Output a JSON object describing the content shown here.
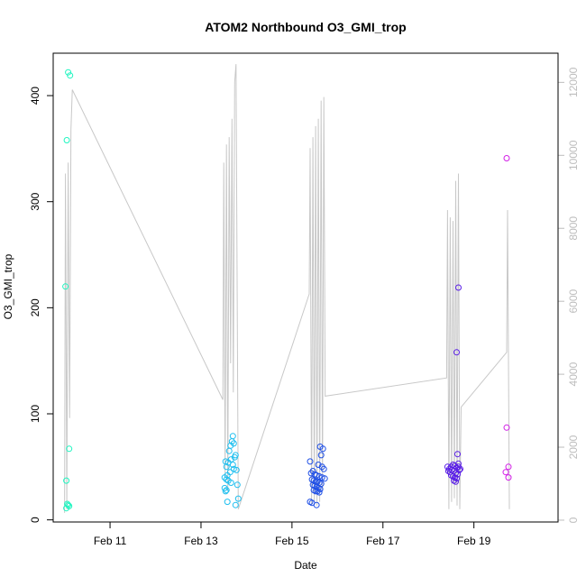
{
  "chart_data": {
    "type": "scatter",
    "title": "ATOM2 Northbound O3_GMI_trop",
    "xlabel": "Date",
    "ylabel": "O3_GMI_trop",
    "x_unit": "days (Feb)",
    "xlim": [
      9.75,
      20.85
    ],
    "ylim": [
      -2,
      440
    ],
    "y2lim": [
      -50,
      12800
    ],
    "x_ticks": [
      {
        "value": 11,
        "label": "Feb 11"
      },
      {
        "value": 13,
        "label": "Feb 13"
      },
      {
        "value": 15,
        "label": "Feb 15"
      },
      {
        "value": 17,
        "label": "Feb 17"
      },
      {
        "value": 19,
        "label": "Feb 19"
      }
    ],
    "y_ticks": [
      "0",
      "100",
      "200",
      "300",
      "400"
    ],
    "y2_ticks": [
      "0",
      "2000",
      "4000",
      "6000",
      "8000",
      "10000",
      "12000"
    ],
    "grid": false,
    "colors": {
      "altitude_line": "#c8c8c8",
      "right_axis": "#bdbdbd",
      "axis": "#000000"
    },
    "series": [
      {
        "color": "#1ff5c0",
        "points": [
          [
            10.08,
            422
          ],
          [
            10.12,
            419
          ],
          [
            10.05,
            358
          ],
          [
            10.02,
            220
          ],
          [
            10.1,
            67
          ],
          [
            10.04,
            37
          ],
          [
            10.06,
            15
          ],
          [
            10.08,
            14
          ],
          [
            10.1,
            13
          ],
          [
            10.04,
            11
          ]
        ]
      },
      {
        "color": "#1fbfef",
        "points": [
          [
            13.7,
            79
          ],
          [
            13.68,
            74
          ],
          [
            13.72,
            72
          ],
          [
            13.65,
            70
          ],
          [
            13.62,
            65
          ],
          [
            13.76,
            61
          ],
          [
            13.74,
            59
          ],
          [
            13.66,
            57
          ],
          [
            13.54,
            55
          ],
          [
            13.6,
            54
          ],
          [
            13.7,
            52
          ],
          [
            13.56,
            50
          ],
          [
            13.72,
            48
          ],
          [
            13.78,
            47
          ],
          [
            13.64,
            45
          ],
          [
            13.58,
            42
          ],
          [
            13.52,
            40
          ],
          [
            13.56,
            38
          ],
          [
            13.6,
            37
          ],
          [
            13.66,
            35
          ],
          [
            13.8,
            33
          ],
          [
            13.52,
            30
          ],
          [
            13.56,
            28
          ],
          [
            13.54,
            27
          ],
          [
            13.82,
            20
          ],
          [
            13.58,
            17
          ],
          [
            13.76,
            14
          ]
        ]
      },
      {
        "color": "#1f4fe6",
        "points": [
          [
            15.4,
            55
          ],
          [
            15.62,
            69
          ],
          [
            15.68,
            67
          ],
          [
            15.64,
            61
          ],
          [
            15.58,
            52
          ],
          [
            15.66,
            50
          ],
          [
            15.7,
            48
          ],
          [
            15.46,
            46
          ],
          [
            15.42,
            44
          ],
          [
            15.5,
            43
          ],
          [
            15.54,
            42
          ],
          [
            15.6,
            41
          ],
          [
            15.66,
            40
          ],
          [
            15.72,
            39
          ],
          [
            15.44,
            38
          ],
          [
            15.48,
            37
          ],
          [
            15.52,
            36
          ],
          [
            15.56,
            36
          ],
          [
            15.6,
            35
          ],
          [
            15.64,
            34
          ],
          [
            15.46,
            33
          ],
          [
            15.5,
            32
          ],
          [
            15.54,
            31
          ],
          [
            15.58,
            30
          ],
          [
            15.62,
            29
          ],
          [
            15.48,
            28
          ],
          [
            15.52,
            27
          ],
          [
            15.56,
            27
          ],
          [
            15.6,
            26
          ],
          [
            15.4,
            17
          ],
          [
            15.44,
            16
          ],
          [
            15.54,
            14
          ]
        ]
      },
      {
        "color": "#5a1fe6",
        "points": [
          [
            18.42,
            50
          ],
          [
            18.46,
            48
          ],
          [
            18.5,
            50
          ],
          [
            18.54,
            52
          ],
          [
            18.58,
            51
          ],
          [
            18.62,
            49
          ],
          [
            18.66,
            50
          ],
          [
            18.44,
            46
          ],
          [
            18.48,
            45
          ],
          [
            18.52,
            47
          ],
          [
            18.56,
            46
          ],
          [
            18.6,
            44
          ],
          [
            18.64,
            43
          ],
          [
            18.68,
            47
          ],
          [
            18.5,
            42
          ],
          [
            18.54,
            41
          ],
          [
            18.58,
            40
          ],
          [
            18.62,
            39
          ],
          [
            18.56,
            37
          ],
          [
            18.6,
            36
          ],
          [
            18.66,
            53
          ],
          [
            18.7,
            48
          ],
          [
            18.64,
            62
          ],
          [
            18.62,
            158
          ],
          [
            18.66,
            219
          ]
        ]
      },
      {
        "color": "#d21fe6",
        "points": [
          [
            19.72,
            341
          ],
          [
            19.72,
            87
          ],
          [
            19.76,
            50
          ],
          [
            19.7,
            45
          ],
          [
            19.76,
            40
          ]
        ]
      }
    ],
    "altitude_line": {
      "points": [
        [
          10.0,
          200
        ],
        [
          10.02,
          9500
        ],
        [
          10.05,
          300
        ],
        [
          10.08,
          9800
        ],
        [
          10.11,
          2800
        ],
        [
          10.14,
          10700
        ],
        [
          10.17,
          11800
        ],
        [
          13.48,
          3300
        ],
        [
          13.5,
          9800
        ],
        [
          13.53,
          1200
        ],
        [
          13.56,
          10300
        ],
        [
          13.59,
          800
        ],
        [
          13.62,
          10500
        ],
        [
          13.65,
          4300
        ],
        [
          13.68,
          11000
        ],
        [
          13.71,
          3500
        ],
        [
          13.74,
          12000
        ],
        [
          13.77,
          12500
        ],
        [
          13.82,
          300
        ],
        [
          15.38,
          6200
        ],
        [
          15.4,
          10200
        ],
        [
          15.43,
          400
        ],
        [
          15.46,
          10500
        ],
        [
          15.49,
          500
        ],
        [
          15.52,
          10800
        ],
        [
          15.55,
          400
        ],
        [
          15.58,
          11000
        ],
        [
          15.61,
          500
        ],
        [
          15.64,
          11500
        ],
        [
          15.67,
          800
        ],
        [
          15.7,
          11600
        ],
        [
          15.73,
          3400
        ],
        [
          18.4,
          3900
        ],
        [
          18.42,
          8500
        ],
        [
          18.45,
          300
        ],
        [
          18.48,
          8300
        ],
        [
          18.51,
          500
        ],
        [
          18.54,
          8200
        ],
        [
          18.57,
          600
        ],
        [
          18.6,
          9300
        ],
        [
          18.63,
          400
        ],
        [
          18.66,
          9500
        ],
        [
          18.69,
          300
        ],
        [
          18.72,
          3100
        ],
        [
          19.72,
          4600
        ],
        [
          19.74,
          8500
        ],
        [
          19.78,
          300
        ]
      ]
    }
  }
}
